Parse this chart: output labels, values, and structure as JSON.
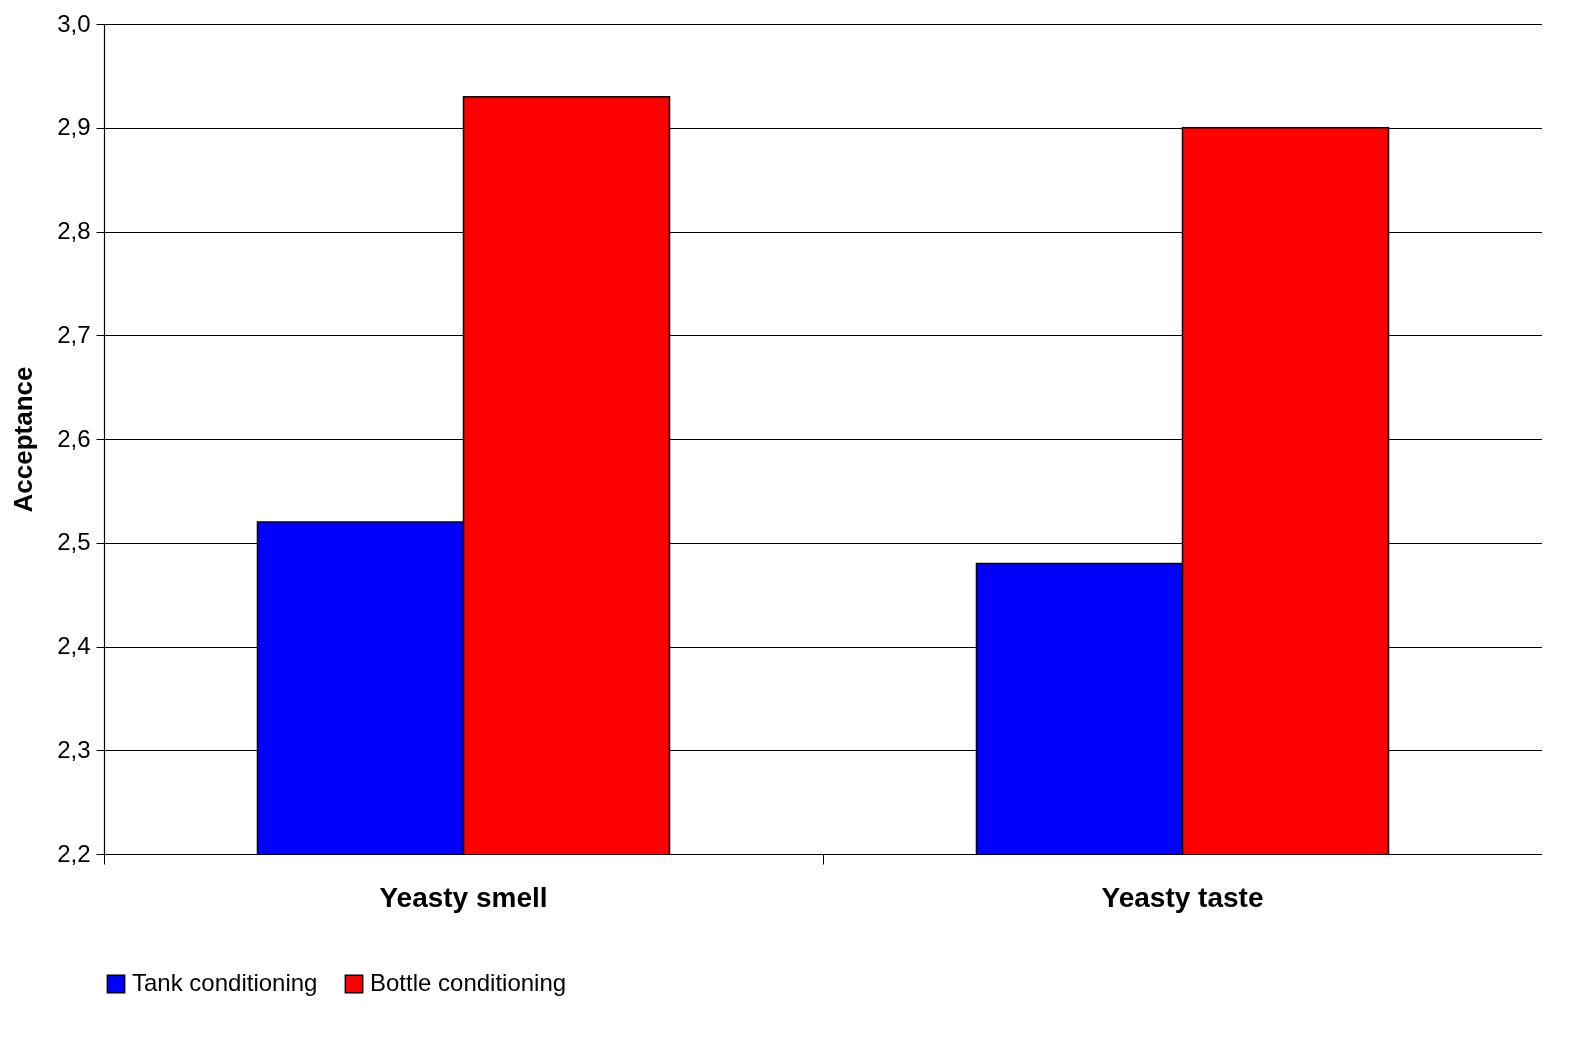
{
  "chart_data": {
    "type": "bar",
    "ylabel": "Acceptance",
    "categories": [
      "Yeasty smell",
      "Yeasty taste"
    ],
    "series": [
      {
        "name": "Tank conditioning",
        "color": "#0000ff",
        "values": [
          2.52,
          2.48
        ]
      },
      {
        "name": "Bottle conditioning",
        "color": "#ff0000",
        "values": [
          2.93,
          2.9
        ]
      }
    ],
    "ylim": [
      2.2,
      3.0
    ],
    "yticks": [
      {
        "value": 2.2,
        "label": "2,2"
      },
      {
        "value": 2.3,
        "label": "2,3"
      },
      {
        "value": 2.4,
        "label": "2,4"
      },
      {
        "value": 2.5,
        "label": "2,5"
      },
      {
        "value": 2.6,
        "label": "2,6"
      },
      {
        "value": 2.7,
        "label": "2,7"
      },
      {
        "value": 2.8,
        "label": "2,8"
      },
      {
        "value": 2.9,
        "label": "2,9"
      },
      {
        "value": 3.0,
        "label": "3,0"
      }
    ],
    "grid": "y",
    "legend": "bottom"
  }
}
